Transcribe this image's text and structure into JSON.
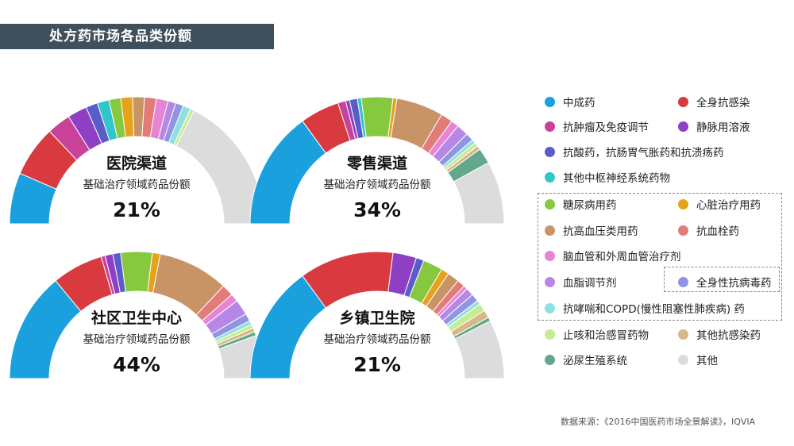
{
  "title": "处方药市场各品类份额",
  "source": "数据来源：《2016中国医药市场全景解读》，IQVIA",
  "colors": {
    "中成药": "#1aa0dc",
    "全身抗感染": "#d93a3f",
    "抗肿瘤及免疫调节": "#c8429a",
    "静脉用溶液": "#8e3fc4",
    "抗酸药，抗肠胃气胀药和抗溃疡药": "#5b5cc9",
    "其他中枢神经系统药物": "#31c6cc",
    "糖尿病用药": "#86c93f",
    "心脏治疗用药": "#e6a21a",
    "抗高血压类用药": "#c99465",
    "抗血栓药": "#e37b78",
    "脑血管和外周血管治疗剂": "#e685d6",
    "血脂调节剂": "#b687e6",
    "全身性抗病毒药": "#8f95e2",
    "抗哮喘和COPD(慢性阻塞性肺疾病) 药": "#8fe0e0",
    "止咳和治感冒药物": "#c6ec93",
    "其他抗感染药": "#d8b886",
    "泌尿生殖系统": "#62a88a",
    "其他": "#dcdcdc"
  },
  "legend": [
    "中成药",
    "全身抗感染",
    "抗肿瘤及免疫调节",
    "静脉用溶液",
    "抗酸药，抗肠胃气胀药和抗溃疡药",
    "其他中枢神经系统药物",
    "糖尿病用药",
    "心脏治疗用药",
    "抗高血压类用药",
    "抗血栓药",
    "脑血管和外周血管治疗剂",
    "血脂调节剂",
    "全身性抗病毒药",
    "抗哮喘和COPD(慢性阻塞性肺疾病) 药",
    "止咳和治感冒药物",
    "其他抗感染药",
    "泌尿生殖系统",
    "其他"
  ],
  "chart_data": [
    {
      "type": "pie",
      "title": "医院渠道",
      "subtitle": "基础治疗领域药品份额",
      "highlight": "21%",
      "slices": [
        {
          "label": "中成药",
          "value": 13
        },
        {
          "label": "全身抗感染",
          "value": 13
        },
        {
          "label": "抗肿瘤及免疫调节",
          "value": 6
        },
        {
          "label": "静脉用溶液",
          "value": 5
        },
        {
          "label": "抗酸药，抗肠胃气胀药和抗溃疡药",
          "value": 3
        },
        {
          "label": "其他中枢神经系统药物",
          "value": 3
        },
        {
          "label": "糖尿病用药",
          "value": 3
        },
        {
          "label": "心脏治疗用药",
          "value": 3
        },
        {
          "label": "抗高血压类用药",
          "value": 3
        },
        {
          "label": "抗血栓药",
          "value": 3
        },
        {
          "label": "脑血管和外周血管治疗剂",
          "value": 3
        },
        {
          "label": "血脂调节剂",
          "value": 2
        },
        {
          "label": "全身性抗病毒药",
          "value": 2
        },
        {
          "label": "抗哮喘和COPD(慢性阻塞性肺疾病) 药",
          "value": 2
        },
        {
          "label": "止咳和治感冒药物",
          "value": 1
        },
        {
          "label": "其他",
          "value": 35
        }
      ]
    },
    {
      "type": "pie",
      "title": "零售渠道",
      "subtitle": "基础治疗领域药品份额",
      "highlight": "34%",
      "slices": [
        {
          "label": "中成药",
          "value": 30
        },
        {
          "label": "全身抗感染",
          "value": 10
        },
        {
          "label": "抗肿瘤及免疫调节",
          "value": 2
        },
        {
          "label": "静脉用溶液",
          "value": 1
        },
        {
          "label": "抗酸药，抗肠胃气胀药和抗溃疡药",
          "value": 2
        },
        {
          "label": "其他中枢神经系统药物",
          "value": 1
        },
        {
          "label": "糖尿病用药",
          "value": 8
        },
        {
          "label": "心脏治疗用药",
          "value": 1
        },
        {
          "label": "抗高血压类用药",
          "value": 12
        },
        {
          "label": "抗血栓药",
          "value": 3
        },
        {
          "label": "脑血管和外周血管治疗剂",
          "value": 2
        },
        {
          "label": "血脂调节剂",
          "value": 3
        },
        {
          "label": "全身性抗病毒药",
          "value": 2
        },
        {
          "label": "抗哮喘和COPD(慢性阻塞性肺疾病) 药",
          "value": 1
        },
        {
          "label": "止咳和治感冒药物",
          "value": 1
        },
        {
          "label": "其他抗感染药",
          "value": 1
        },
        {
          "label": "泌尿生殖系统",
          "value": 4
        },
        {
          "label": "其他",
          "value": 16
        }
      ]
    },
    {
      "type": "pie",
      "title": "社区卫生中心",
      "subtitle": "基础治疗领域药品份额",
      "highlight": "44%",
      "slices": [
        {
          "label": "中成药",
          "value": 28
        },
        {
          "label": "全身抗感染",
          "value": 13
        },
        {
          "label": "抗肿瘤及免疫调节",
          "value": 1
        },
        {
          "label": "静脉用溶液",
          "value": 2
        },
        {
          "label": "抗酸药，抗肠胃气胀药和抗溃疡药",
          "value": 2
        },
        {
          "label": "糖尿病用药",
          "value": 8
        },
        {
          "label": "心脏治疗用药",
          "value": 2
        },
        {
          "label": "抗高血压类用药",
          "value": 18
        },
        {
          "label": "抗血栓药",
          "value": 3
        },
        {
          "label": "脑血管和外周血管治疗剂",
          "value": 2
        },
        {
          "label": "血脂调节剂",
          "value": 4
        },
        {
          "label": "全身性抗病毒药",
          "value": 2
        },
        {
          "label": "抗哮喘和COPD(慢性阻塞性肺疾病) 药",
          "value": 1
        },
        {
          "label": "止咳和治感冒药物",
          "value": 1
        },
        {
          "label": "其他抗感染药",
          "value": 1
        },
        {
          "label": "泌尿生殖系统",
          "value": 1
        },
        {
          "label": "其他",
          "value": 11
        }
      ]
    },
    {
      "type": "pie",
      "title": "乡镇卫生院",
      "subtitle": "基础治疗领域药品份额",
      "highlight": "21%",
      "slices": [
        {
          "label": "中成药",
          "value": 30
        },
        {
          "label": "全身抗感染",
          "value": 24
        },
        {
          "label": "静脉用溶液",
          "value": 6
        },
        {
          "label": "抗酸药，抗肠胃气胀药和抗溃疡药",
          "value": 2
        },
        {
          "label": "糖尿病用药",
          "value": 5
        },
        {
          "label": "心脏治疗用药",
          "value": 2
        },
        {
          "label": "抗高血压类用药",
          "value": 3
        },
        {
          "label": "抗血栓药",
          "value": 2
        },
        {
          "label": "脑血管和外周血管治疗剂",
          "value": 1
        },
        {
          "label": "血脂调节剂",
          "value": 2
        },
        {
          "label": "全身性抗病毒药",
          "value": 2
        },
        {
          "label": "抗哮喘和COPD(慢性阻塞性肺疾病) 药",
          "value": 1
        },
        {
          "label": "止咳和治感冒药物",
          "value": 2
        },
        {
          "label": "其他抗感染药",
          "value": 2
        },
        {
          "label": "泌尿生殖系统",
          "value": 1
        },
        {
          "label": "其他",
          "value": 15
        }
      ]
    }
  ]
}
